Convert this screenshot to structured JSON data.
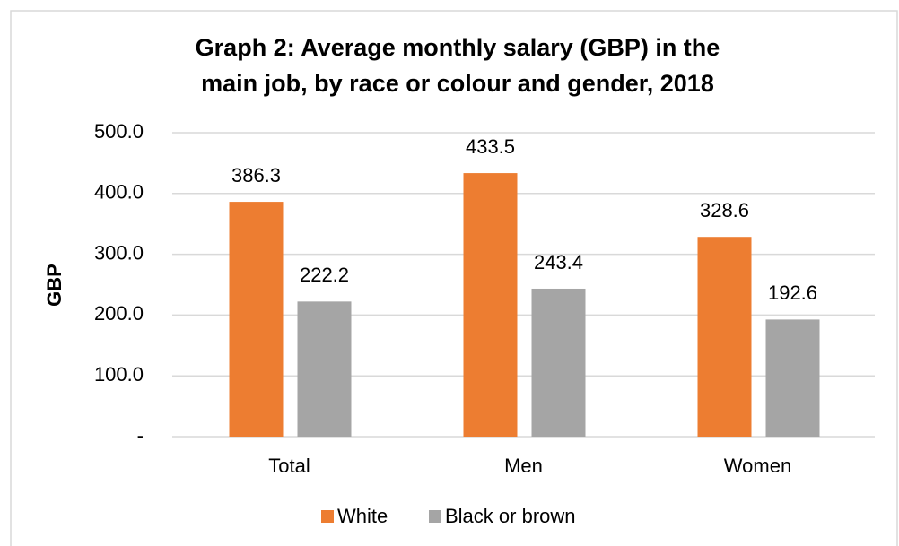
{
  "chart_data": {
    "type": "bar",
    "title": [
      "Graph 2: Average monthly salary (GBP) in the",
      "main job, by race or colour and gender, 2018"
    ],
    "y_label": "GBP",
    "categories": [
      "Total",
      "Men",
      "Women"
    ],
    "series": [
      {
        "name": "White",
        "color": "#ed7d31",
        "values": [
          386.3,
          433.5,
          328.6
        ]
      },
      {
        "name": "Black or brown",
        "color": "#a5a5a5",
        "values": [
          222.2,
          243.4,
          192.6
        ]
      }
    ],
    "ylim": [
      0,
      500
    ],
    "yticks": [
      {
        "value": 0,
        "label": "-"
      },
      {
        "value": 100,
        "label": "100.0"
      },
      {
        "value": 200,
        "label": "200.0"
      },
      {
        "value": 300,
        "label": "300.0"
      },
      {
        "value": 400,
        "label": "400.0"
      },
      {
        "value": 500,
        "label": "500.0"
      }
    ],
    "grid": true,
    "legend": "bottom"
  }
}
